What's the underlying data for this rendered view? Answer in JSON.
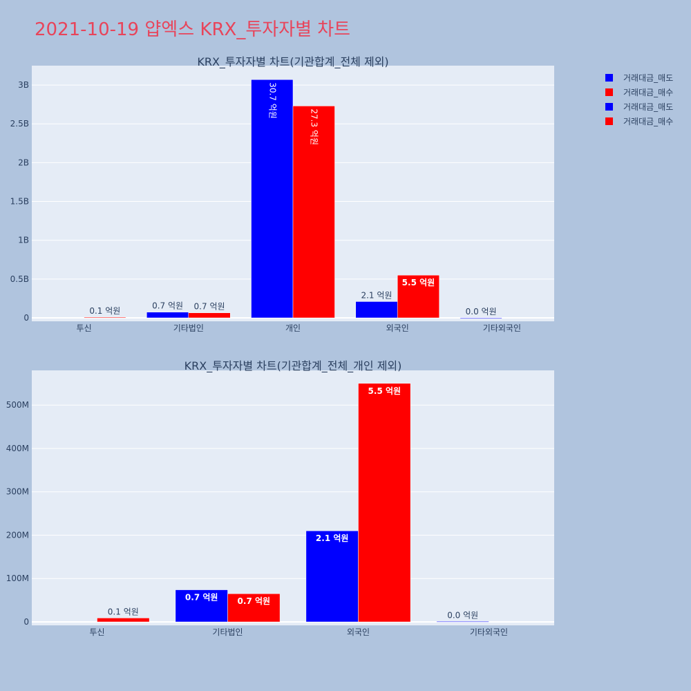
{
  "page_title": "2021-10-19 얍엑스 KRX_투자자별 차트",
  "legend": [
    {
      "label": "거래대금_매도",
      "color": "#0000ff"
    },
    {
      "label": "거래대금_매수",
      "color": "#ff0000"
    },
    {
      "label": "거래대금_매도",
      "color": "#0000ff"
    },
    {
      "label": "거래대금_매수",
      "color": "#ff0000"
    }
  ],
  "chart_data": [
    {
      "type": "bar",
      "title": "KRX_투자자별 차트(기관합계_전체 제외)",
      "categories": [
        "투신",
        "기타법인",
        "개인",
        "외국인",
        "기타외국인"
      ],
      "ylim": [
        0,
        3250000000
      ],
      "yticks": [
        0,
        500000000,
        1000000000,
        1500000000,
        2000000000,
        2500000000,
        3000000000
      ],
      "ytick_labels": [
        "0",
        "0.5B",
        "1B",
        "1.5B",
        "2B",
        "2.5B",
        "3B"
      ],
      "grid": true,
      "legend_position": "top-right",
      "series": [
        {
          "name": "거래대금_매도",
          "color": "#0000ff",
          "values": [
            0,
            74000000,
            3070000000,
            210000000,
            1000000
          ],
          "labels": [
            "",
            "0.7 억원",
            "30.7 억원",
            "2.1 억원",
            "0.0 억원"
          ]
        },
        {
          "name": "거래대금_매수",
          "color": "#ff0000",
          "values": [
            9000000,
            65000000,
            2730000000,
            550000000,
            0
          ],
          "labels": [
            "0.1 억원",
            "0.7 억원",
            "27.3 억원",
            "5.5 억원",
            ""
          ]
        }
      ]
    },
    {
      "type": "bar",
      "title": "KRX_투자자별 차트(기관합계_전체_개인 제외)",
      "categories": [
        "투신",
        "기타법인",
        "외국인",
        "기타외국인"
      ],
      "ylim": [
        0,
        580000000
      ],
      "yticks": [
        0,
        100000000,
        200000000,
        300000000,
        400000000,
        500000000
      ],
      "ytick_labels": [
        "0",
        "100M",
        "200M",
        "300M",
        "400M",
        "500M"
      ],
      "grid": true,
      "series": [
        {
          "name": "거래대금_매도",
          "color": "#0000ff",
          "values": [
            0,
            74000000,
            210000000,
            1000000
          ],
          "labels": [
            "",
            "0.7 억원",
            "2.1 억원",
            "0.0 억원"
          ]
        },
        {
          "name": "거래대금_매수",
          "color": "#ff0000",
          "values": [
            9000000,
            65000000,
            550000000,
            0
          ],
          "labels": [
            "0.1 억원",
            "0.7 억원",
            "5.5 억원",
            ""
          ]
        }
      ]
    }
  ]
}
